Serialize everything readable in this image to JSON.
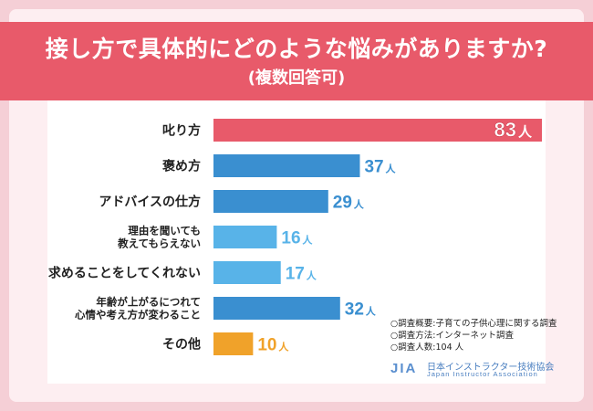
{
  "banner": {
    "title": "接し方で具体的にどのような悩みがありますか?",
    "subtitle": "(複数回答可)"
  },
  "colors": {
    "highlight_bar": "#e85a6a",
    "main_bar": "#3a8fd0",
    "light_bar": "#58b3e8",
    "other_bar": "#f0a22a",
    "banner_bg": "#e85a6a"
  },
  "chart_data": {
    "type": "bar",
    "orientation": "horizontal",
    "title": "接し方で具体的にどのような悩みがありますか?",
    "subtitle": "(複数回答可)",
    "unit": "人",
    "categories": [
      [
        "叱り方"
      ],
      [
        "褒め方"
      ],
      [
        "アドバイスの仕方"
      ],
      [
        "理由を聞いても",
        "教えてもらえない"
      ],
      [
        "求めることをしてくれない"
      ],
      [
        "年齢が上がるにつれて",
        "心情や考え方が変わること"
      ],
      [
        "その他"
      ]
    ],
    "values": [
      83,
      37,
      29,
      16,
      17,
      32,
      10
    ],
    "bar_color_keys": [
      "highlight",
      "main",
      "main",
      "light",
      "light",
      "main",
      "other"
    ],
    "xlim": [
      0,
      83
    ],
    "grid": false
  },
  "notes": [
    "○調査概要:子育ての子供心理に関する調査",
    "○調査方法:インターネット調査",
    "○調査人数:104 人"
  ],
  "logo": {
    "mark": "JIA",
    "name_jp": "日本インストラクター技術協会",
    "name_en": "Japan Instructor Association"
  }
}
